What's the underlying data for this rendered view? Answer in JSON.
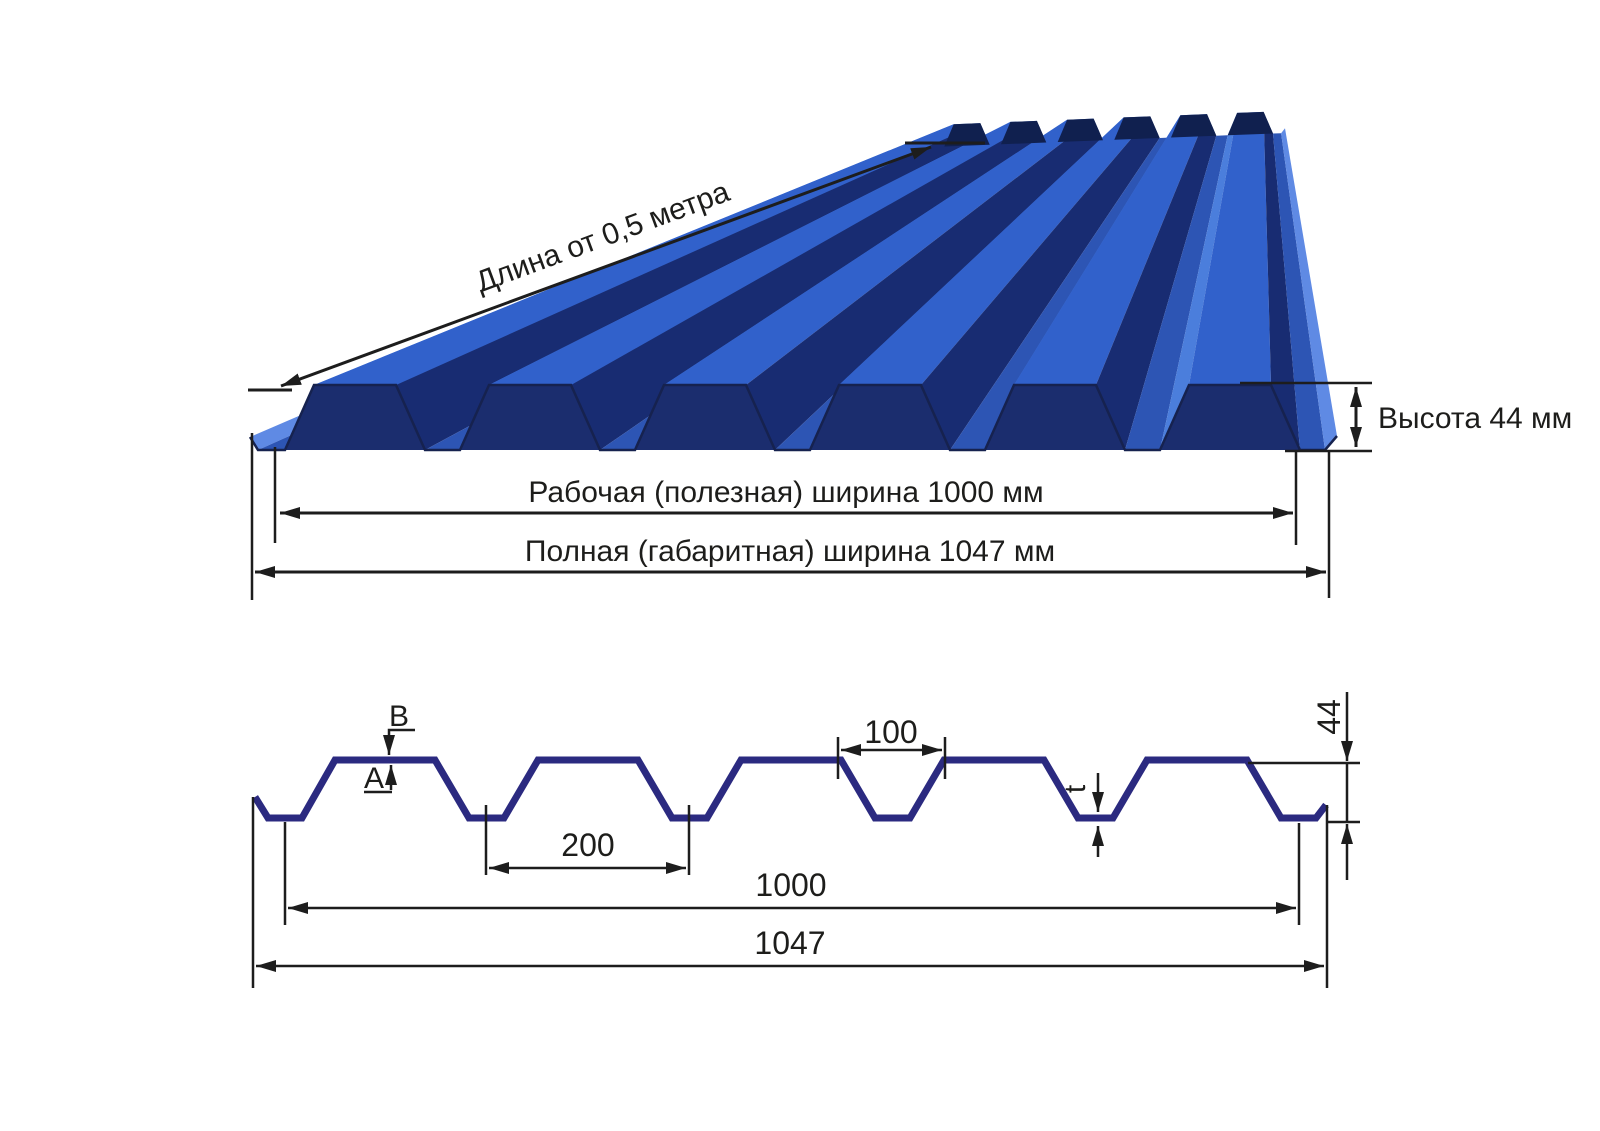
{
  "top_figure": {
    "length_label": "Длина от 0,5 метра",
    "height_label": "Высота 44 мм",
    "working_width_label": "Рабочая (полезная) ширина 1000 мм",
    "overall_width_label": "Полная (габаритная) ширина 1047 мм"
  },
  "section_figure": {
    "point_b": "B",
    "point_a": "A",
    "crest_opening": "100",
    "pitch": "200",
    "thickness": "t",
    "height": "44",
    "working_width": "1000",
    "overall_width": "1047"
  },
  "colors": {
    "background": "#ffffff",
    "sheet_light": "#4b7edc",
    "sheet_mid": "#3161cb",
    "sheet_valley": "#2d55b4",
    "sheet_dark": "#182c72",
    "sheet_hollow": "#1b2d6e",
    "sheet_edge": "#5f8ae4",
    "sheet_endcap": "#10204f",
    "sheet_outline": "#16224f",
    "profile_line": "#2b2a80",
    "dimension_line": "#1d1d1d"
  }
}
